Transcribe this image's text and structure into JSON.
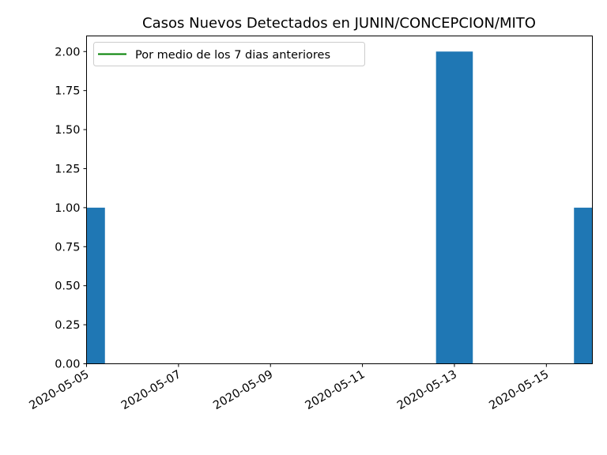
{
  "chart_data": {
    "type": "bar",
    "title": "Casos Nuevos Detectados en JUNIN/CONCEPCION/MITO",
    "xlabel": "",
    "ylabel": "",
    "x_range": [
      "2020-05-05",
      "2020-05-16"
    ],
    "ylim": [
      0,
      2.1
    ],
    "y_ticks": [
      0.0,
      0.25,
      0.5,
      0.75,
      1.0,
      1.25,
      1.5,
      1.75,
      2.0
    ],
    "y_tick_labels": [
      "0.00",
      "0.25",
      "0.50",
      "0.75",
      "1.00",
      "1.25",
      "1.50",
      "1.75",
      "2.00"
    ],
    "x_ticks": [
      "2020-05-05",
      "2020-05-07",
      "2020-05-09",
      "2020-05-11",
      "2020-05-13",
      "2020-05-15"
    ],
    "bar_color": "#1f77b4",
    "series": [
      {
        "name": "",
        "points": [
          {
            "date": "2020-05-05",
            "value": 1
          },
          {
            "date": "2020-05-13",
            "value": 2
          },
          {
            "date": "2020-05-16",
            "value": 1
          }
        ]
      }
    ],
    "legend": {
      "placement": "top-left",
      "entries": [
        {
          "label": "Por medio de los 7 dias anteriores",
          "color": "#008000",
          "kind": "line"
        }
      ]
    },
    "grid": false
  }
}
